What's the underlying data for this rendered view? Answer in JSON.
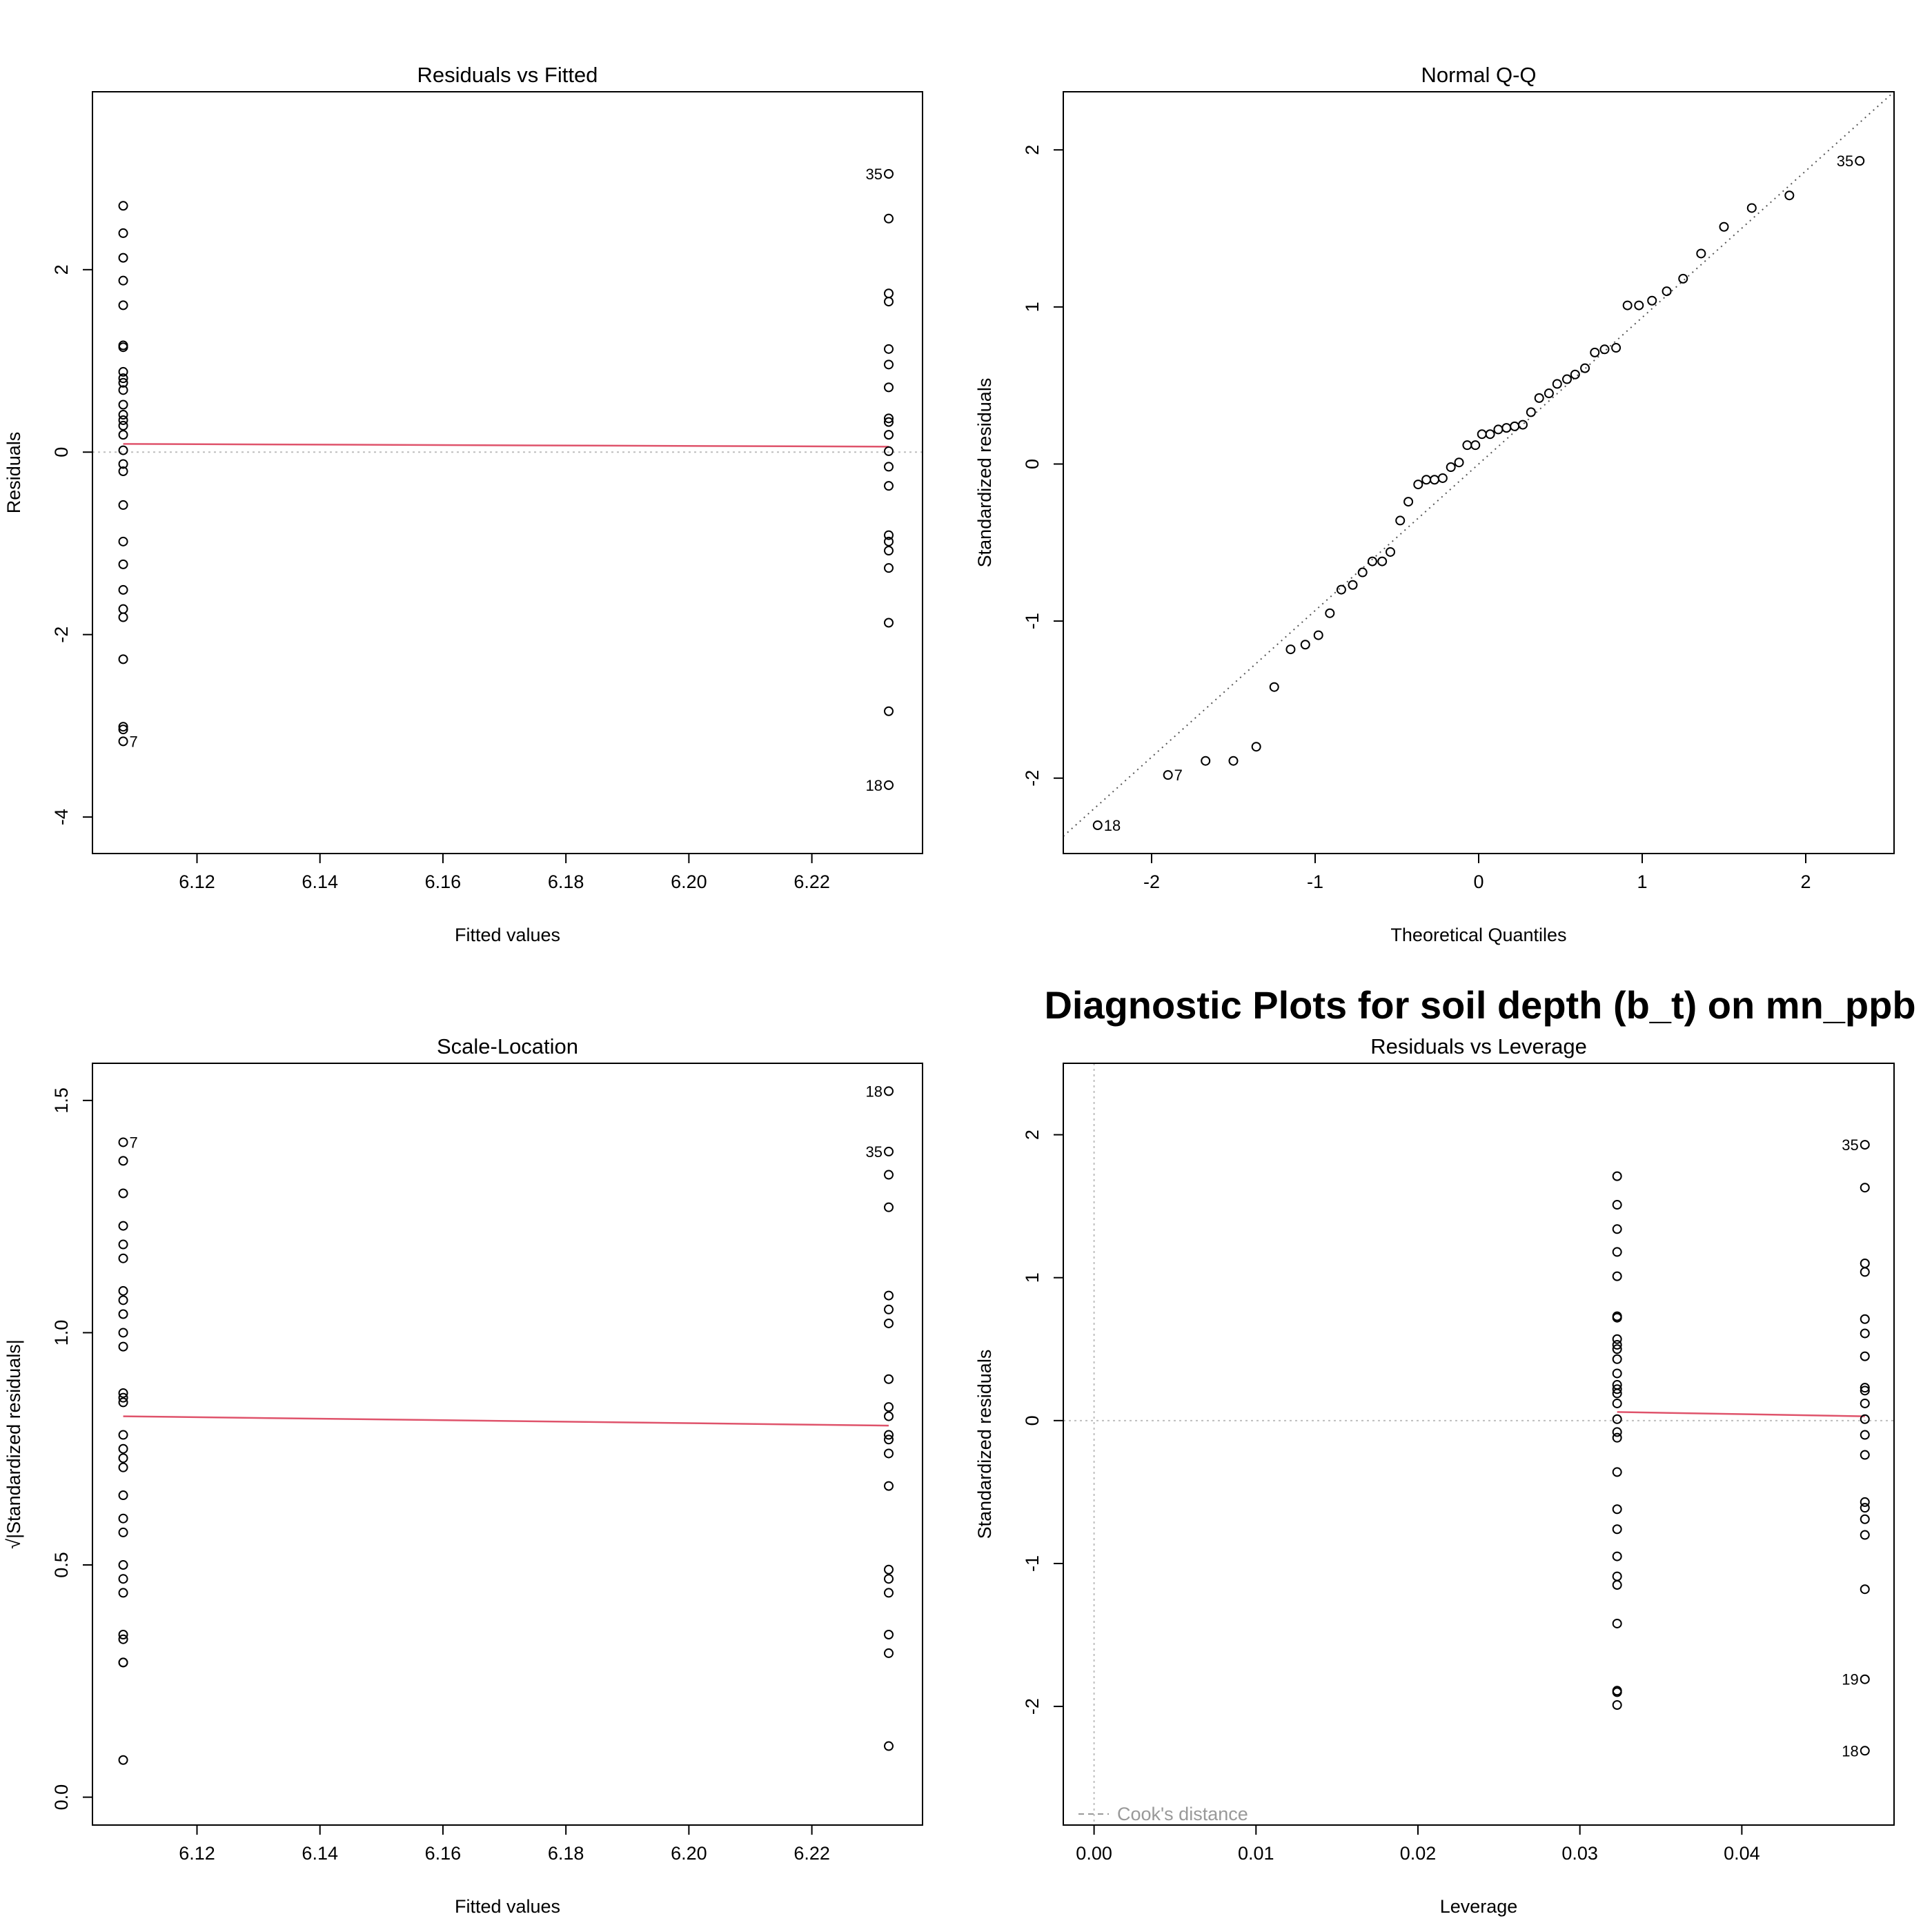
{
  "figure_title": "Diagnostic Plots for soil depth (b_t) on mn_ppb",
  "colors": {
    "smoother": "#DF536B",
    "reference": "#BEBEBE",
    "points": "#000000"
  },
  "chart_data": [
    {
      "id": "rvf",
      "type": "scatter",
      "title": "Residuals vs Fitted",
      "xlabel": "Fitted values",
      "ylabel": "Residuals",
      "xlim": [
        6.103,
        6.238
      ],
      "ylim": [
        -4.4,
        3.95
      ],
      "xticks": [
        6.12,
        6.14,
        6.16,
        6.18,
        6.2,
        6.22
      ],
      "xtick_labels": [
        "6.12",
        "6.14",
        "6.16",
        "6.18",
        "6.20",
        "6.22"
      ],
      "yticks": [
        -4,
        -2,
        0,
        2
      ],
      "ytick_labels": [
        "-4",
        "-2",
        "0",
        "2"
      ],
      "points": [
        {
          "x": 6.108,
          "y": 2.7
        },
        {
          "x": 6.108,
          "y": 2.4
        },
        {
          "x": 6.108,
          "y": 2.13
        },
        {
          "x": 6.108,
          "y": 1.88
        },
        {
          "x": 6.108,
          "y": 1.61
        },
        {
          "x": 6.108,
          "y": 1.17
        },
        {
          "x": 6.108,
          "y": 1.15
        },
        {
          "x": 6.108,
          "y": 0.88
        },
        {
          "x": 6.108,
          "y": 0.81
        },
        {
          "x": 6.108,
          "y": 0.76
        },
        {
          "x": 6.108,
          "y": 0.68
        },
        {
          "x": 6.108,
          "y": 0.52
        },
        {
          "x": 6.108,
          "y": 0.41
        },
        {
          "x": 6.108,
          "y": 0.35
        },
        {
          "x": 6.108,
          "y": 0.29
        },
        {
          "x": 6.108,
          "y": 0.19
        },
        {
          "x": 6.108,
          "y": 0.02
        },
        {
          "x": 6.108,
          "y": -0.13
        },
        {
          "x": 6.108,
          "y": -0.21
        },
        {
          "x": 6.108,
          "y": -0.58
        },
        {
          "x": 6.108,
          "y": -0.98
        },
        {
          "x": 6.108,
          "y": -1.23
        },
        {
          "x": 6.108,
          "y": -1.51
        },
        {
          "x": 6.108,
          "y": -1.72
        },
        {
          "x": 6.108,
          "y": -1.81
        },
        {
          "x": 6.108,
          "y": -2.27
        },
        {
          "x": 6.108,
          "y": -3.01
        },
        {
          "x": 6.108,
          "y": -3.04
        },
        {
          "x": 6.108,
          "y": -3.17,
          "label": "7",
          "side": "right"
        },
        {
          "x": 6.2325,
          "y": 3.05,
          "label": "35",
          "side": "left"
        },
        {
          "x": 6.2325,
          "y": 2.56
        },
        {
          "x": 6.2325,
          "y": 1.74
        },
        {
          "x": 6.2325,
          "y": 1.65
        },
        {
          "x": 6.2325,
          "y": 1.13
        },
        {
          "x": 6.2325,
          "y": 0.96
        },
        {
          "x": 6.2325,
          "y": 0.71
        },
        {
          "x": 6.2325,
          "y": 0.37
        },
        {
          "x": 6.2325,
          "y": 0.33
        },
        {
          "x": 6.2325,
          "y": 0.19
        },
        {
          "x": 6.2325,
          "y": 0.01
        },
        {
          "x": 6.2325,
          "y": -0.16
        },
        {
          "x": 6.2325,
          "y": -0.37
        },
        {
          "x": 6.2325,
          "y": -0.91
        },
        {
          "x": 6.2325,
          "y": -0.98
        },
        {
          "x": 6.2325,
          "y": -1.08
        },
        {
          "x": 6.2325,
          "y": -1.27
        },
        {
          "x": 6.2325,
          "y": -1.87
        },
        {
          "x": 6.2325,
          "y": -2.84
        },
        {
          "x": 6.2325,
          "y": -3.65,
          "label": "18",
          "side": "left"
        }
      ],
      "smoother": [
        [
          6.108,
          0.09
        ],
        [
          6.2325,
          0.06
        ]
      ],
      "hline": 0
    },
    {
      "id": "qq",
      "type": "scatter",
      "title": "Normal Q-Q",
      "xlabel": "Theoretical Quantiles",
      "ylabel": "Standardized residuals",
      "xlim": [
        -2.54,
        2.54
      ],
      "ylim": [
        -2.48,
        2.37
      ],
      "xticks": [
        -2,
        -1,
        0,
        1,
        2
      ],
      "xtick_labels": [
        "-2",
        "-1",
        "0",
        "1",
        "2"
      ],
      "yticks": [
        -2,
        -1,
        0,
        1,
        2
      ],
      "ytick_labels": [
        "-2",
        "-1",
        "0",
        "1",
        "2"
      ],
      "points": [
        {
          "x": -2.33,
          "y": -2.3,
          "label": "18",
          "side": "right"
        },
        {
          "x": -1.9,
          "y": -1.98,
          "label": "7",
          "side": "right"
        },
        {
          "x": -1.67,
          "y": -1.89
        },
        {
          "x": -1.5,
          "y": -1.89
        },
        {
          "x": -1.36,
          "y": -1.8
        },
        {
          "x": -1.25,
          "y": -1.42
        },
        {
          "x": -1.15,
          "y": -1.18
        },
        {
          "x": -1.06,
          "y": -1.15
        },
        {
          "x": -0.98,
          "y": -1.09
        },
        {
          "x": -0.91,
          "y": -0.95
        },
        {
          "x": -0.84,
          "y": -0.8
        },
        {
          "x": -0.77,
          "y": -0.77
        },
        {
          "x": -0.71,
          "y": -0.69
        },
        {
          "x": -0.65,
          "y": -0.62
        },
        {
          "x": -0.59,
          "y": -0.62
        },
        {
          "x": -0.54,
          "y": -0.56
        },
        {
          "x": -0.48,
          "y": -0.36
        },
        {
          "x": -0.43,
          "y": -0.24
        },
        {
          "x": -0.37,
          "y": -0.13
        },
        {
          "x": -0.32,
          "y": -0.1
        },
        {
          "x": -0.27,
          "y": -0.1
        },
        {
          "x": -0.22,
          "y": -0.09
        },
        {
          "x": -0.17,
          "y": -0.02
        },
        {
          "x": -0.12,
          "y": 0.01
        },
        {
          "x": -0.07,
          "y": 0.12
        },
        {
          "x": -0.02,
          "y": 0.12
        },
        {
          "x": 0.02,
          "y": 0.19
        },
        {
          "x": 0.07,
          "y": 0.19
        },
        {
          "x": 0.12,
          "y": 0.22
        },
        {
          "x": 0.17,
          "y": 0.23
        },
        {
          "x": 0.22,
          "y": 0.24
        },
        {
          "x": 0.27,
          "y": 0.25
        },
        {
          "x": 0.32,
          "y": 0.33
        },
        {
          "x": 0.37,
          "y": 0.42
        },
        {
          "x": 0.43,
          "y": 0.45
        },
        {
          "x": 0.48,
          "y": 0.51
        },
        {
          "x": 0.54,
          "y": 0.54
        },
        {
          "x": 0.59,
          "y": 0.57
        },
        {
          "x": 0.65,
          "y": 0.61
        },
        {
          "x": 0.71,
          "y": 0.71
        },
        {
          "x": 0.77,
          "y": 0.73
        },
        {
          "x": 0.84,
          "y": 0.74
        },
        {
          "x": 0.91,
          "y": 1.01
        },
        {
          "x": 0.98,
          "y": 1.01
        },
        {
          "x": 1.06,
          "y": 1.04
        },
        {
          "x": 1.15,
          "y": 1.1
        },
        {
          "x": 1.25,
          "y": 1.18
        },
        {
          "x": 1.36,
          "y": 1.34
        },
        {
          "x": 1.5,
          "y": 1.51
        },
        {
          "x": 1.67,
          "y": 1.63
        },
        {
          "x": 1.9,
          "y": 1.71
        },
        {
          "x": 2.33,
          "y": 1.93,
          "label": "35",
          "side": "left"
        }
      ],
      "refline": [
        [
          -2.54,
          -2.37
        ],
        [
          2.54,
          2.37
        ]
      ]
    },
    {
      "id": "sl",
      "type": "scatter",
      "title": "Scale-Location",
      "xlabel": "Fitted values",
      "ylabel": "√|Standardized residuals|",
      "xlim": [
        6.103,
        6.238
      ],
      "ylim": [
        -0.06,
        1.58
      ],
      "xticks": [
        6.12,
        6.14,
        6.16,
        6.18,
        6.2,
        6.22
      ],
      "xtick_labels": [
        "6.12",
        "6.14",
        "6.16",
        "6.18",
        "6.20",
        "6.22"
      ],
      "yticks": [
        0.0,
        0.5,
        1.0,
        1.5
      ],
      "ytick_labels": [
        "0.0",
        "0.5",
        "1.0",
        "1.5"
      ],
      "points": [
        {
          "x": 6.108,
          "y": 1.41,
          "label": "7",
          "side": "right"
        },
        {
          "x": 6.108,
          "y": 1.37
        },
        {
          "x": 6.108,
          "y": 1.3
        },
        {
          "x": 6.108,
          "y": 1.23
        },
        {
          "x": 6.108,
          "y": 1.19
        },
        {
          "x": 6.108,
          "y": 1.16
        },
        {
          "x": 6.108,
          "y": 1.09
        },
        {
          "x": 6.108,
          "y": 1.07
        },
        {
          "x": 6.108,
          "y": 1.04
        },
        {
          "x": 6.108,
          "y": 1.0
        },
        {
          "x": 6.108,
          "y": 0.97
        },
        {
          "x": 6.108,
          "y": 0.87
        },
        {
          "x": 6.108,
          "y": 0.86
        },
        {
          "x": 6.108,
          "y": 0.85
        },
        {
          "x": 6.108,
          "y": 0.78
        },
        {
          "x": 6.108,
          "y": 0.75
        },
        {
          "x": 6.108,
          "y": 0.73
        },
        {
          "x": 6.108,
          "y": 0.71
        },
        {
          "x": 6.108,
          "y": 0.65
        },
        {
          "x": 6.108,
          "y": 0.6
        },
        {
          "x": 6.108,
          "y": 0.57
        },
        {
          "x": 6.108,
          "y": 0.5
        },
        {
          "x": 6.108,
          "y": 0.47
        },
        {
          "x": 6.108,
          "y": 0.44
        },
        {
          "x": 6.108,
          "y": 0.35
        },
        {
          "x": 6.108,
          "y": 0.34
        },
        {
          "x": 6.108,
          "y": 0.29
        },
        {
          "x": 6.108,
          "y": 0.29
        },
        {
          "x": 6.108,
          "y": 0.08
        },
        {
          "x": 6.2325,
          "y": 1.52,
          "label": "18",
          "side": "left"
        },
        {
          "x": 6.2325,
          "y": 1.39,
          "label": "35",
          "side": "left"
        },
        {
          "x": 6.2325,
          "y": 1.34
        },
        {
          "x": 6.2325,
          "y": 1.27
        },
        {
          "x": 6.2325,
          "y": 1.08
        },
        {
          "x": 6.2325,
          "y": 1.05
        },
        {
          "x": 6.2325,
          "y": 1.02
        },
        {
          "x": 6.2325,
          "y": 0.9
        },
        {
          "x": 6.2325,
          "y": 0.84
        },
        {
          "x": 6.2325,
          "y": 0.82
        },
        {
          "x": 6.2325,
          "y": 0.78
        },
        {
          "x": 6.2325,
          "y": 0.77
        },
        {
          "x": 6.2325,
          "y": 0.74
        },
        {
          "x": 6.2325,
          "y": 0.67
        },
        {
          "x": 6.2325,
          "y": 0.49
        },
        {
          "x": 6.2325,
          "y": 0.47
        },
        {
          "x": 6.2325,
          "y": 0.44
        },
        {
          "x": 6.2325,
          "y": 0.35
        },
        {
          "x": 6.2325,
          "y": 0.31
        },
        {
          "x": 6.2325,
          "y": 0.11
        }
      ],
      "smoother": [
        [
          6.108,
          0.82
        ],
        [
          6.2325,
          0.8
        ]
      ]
    },
    {
      "id": "rvl",
      "type": "scatter",
      "title": "Residuals vs Leverage",
      "xlabel": "Leverage",
      "ylabel": "Standardized residuals",
      "xlim": [
        -0.0019,
        0.0494
      ],
      "ylim": [
        -2.83,
        2.5
      ],
      "xticks": [
        0.0,
        0.01,
        0.02,
        0.03,
        0.04
      ],
      "xtick_labels": [
        "0.00",
        "0.01",
        "0.02",
        "0.03",
        "0.04"
      ],
      "yticks": [
        -2,
        -1,
        0,
        1,
        2
      ],
      "ytick_labels": [
        "-2",
        "-1",
        "0",
        "1",
        "2"
      ],
      "points": [
        {
          "x": 0.0323,
          "y": 1.71
        },
        {
          "x": 0.0323,
          "y": 1.51
        },
        {
          "x": 0.0323,
          "y": 1.34
        },
        {
          "x": 0.0323,
          "y": 1.18
        },
        {
          "x": 0.0323,
          "y": 1.01
        },
        {
          "x": 0.0323,
          "y": 0.73
        },
        {
          "x": 0.0323,
          "y": 0.72
        },
        {
          "x": 0.0323,
          "y": 0.57
        },
        {
          "x": 0.0323,
          "y": 0.53
        },
        {
          "x": 0.0323,
          "y": 0.5
        },
        {
          "x": 0.0323,
          "y": 0.43
        },
        {
          "x": 0.0323,
          "y": 0.33
        },
        {
          "x": 0.0323,
          "y": 0.25
        },
        {
          "x": 0.0323,
          "y": 0.22
        },
        {
          "x": 0.0323,
          "y": 0.19
        },
        {
          "x": 0.0323,
          "y": 0.12
        },
        {
          "x": 0.0323,
          "y": 0.01
        },
        {
          "x": 0.0323,
          "y": -0.08
        },
        {
          "x": 0.0323,
          "y": -0.12
        },
        {
          "x": 0.0323,
          "y": -0.36
        },
        {
          "x": 0.0323,
          "y": -0.62
        },
        {
          "x": 0.0323,
          "y": -0.76
        },
        {
          "x": 0.0323,
          "y": -0.95
        },
        {
          "x": 0.0323,
          "y": -1.09
        },
        {
          "x": 0.0323,
          "y": -1.15
        },
        {
          "x": 0.0323,
          "y": -1.42
        },
        {
          "x": 0.0323,
          "y": -1.89
        },
        {
          "x": 0.0323,
          "y": -1.9
        },
        {
          "x": 0.0323,
          "y": -1.99
        },
        {
          "x": 0.0476,
          "y": 1.93,
          "label": "35",
          "side": "left"
        },
        {
          "x": 0.0476,
          "y": 1.63
        },
        {
          "x": 0.0476,
          "y": 1.1
        },
        {
          "x": 0.0476,
          "y": 1.04
        },
        {
          "x": 0.0476,
          "y": 0.71
        },
        {
          "x": 0.0476,
          "y": 0.61
        },
        {
          "x": 0.0476,
          "y": 0.45
        },
        {
          "x": 0.0476,
          "y": 0.23
        },
        {
          "x": 0.0476,
          "y": 0.21
        },
        {
          "x": 0.0476,
          "y": 0.12
        },
        {
          "x": 0.0476,
          "y": 0.01
        },
        {
          "x": 0.0476,
          "y": -0.1
        },
        {
          "x": 0.0476,
          "y": -0.24
        },
        {
          "x": 0.0476,
          "y": -0.57
        },
        {
          "x": 0.0476,
          "y": -0.61
        },
        {
          "x": 0.0476,
          "y": -0.69
        },
        {
          "x": 0.0476,
          "y": -0.8
        },
        {
          "x": 0.0476,
          "y": -1.18
        },
        {
          "x": 0.0476,
          "y": -1.81,
          "label": "19",
          "side": "left"
        },
        {
          "x": 0.0476,
          "y": -2.31,
          "label": "18",
          "side": "left"
        }
      ],
      "smoother": [
        [
          0.0323,
          0.06
        ],
        [
          0.0476,
          0.03
        ]
      ],
      "hline": 0,
      "vline": 0,
      "legend": {
        "text": "Cook's distance",
        "position": "bottom-left"
      }
    }
  ]
}
